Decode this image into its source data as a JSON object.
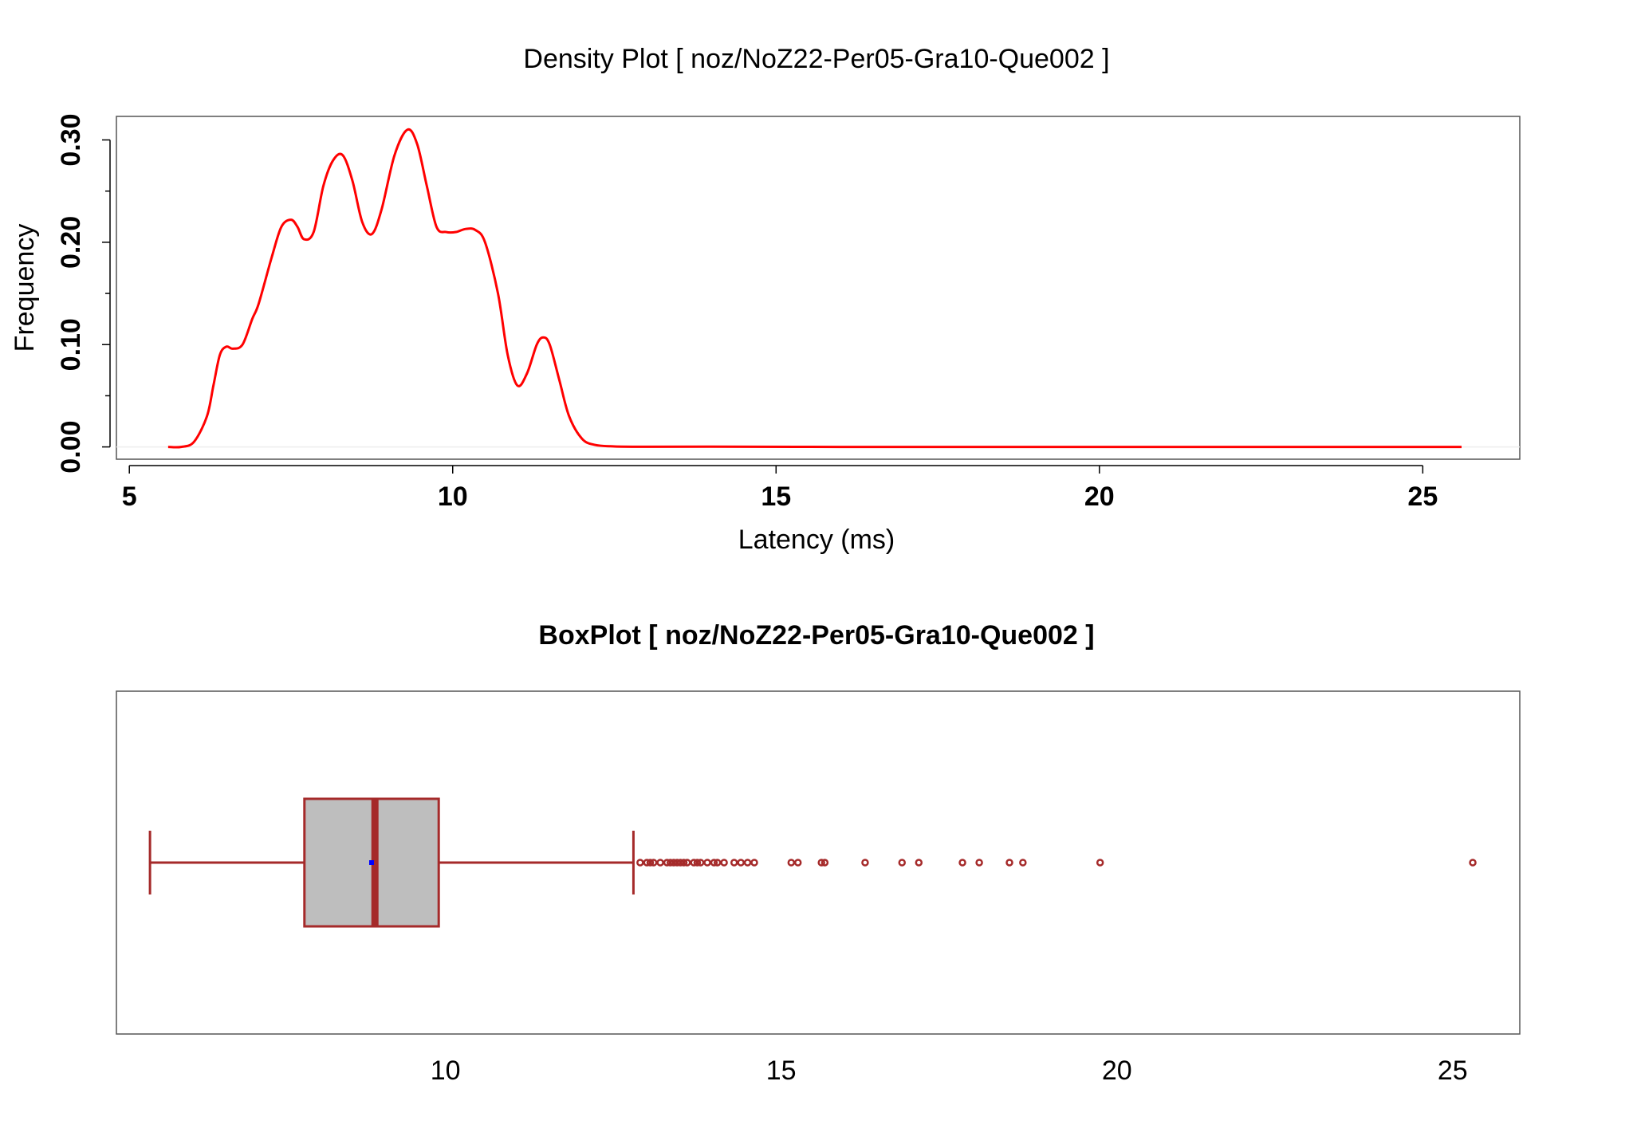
{
  "colors": {
    "density_line": "#ff0000",
    "box_stroke": "#a52a2a",
    "box_fill": "#bebebe",
    "median": "#a52a2a",
    "mean_marker": "#0000ff",
    "outlier": "#a52a2a",
    "frame": "#555555"
  },
  "chart_data": [
    {
      "type": "line",
      "title": "Density Plot [ noz/NoZ22-Per05-Gra10-Que002 ]",
      "xlabel": "Latency (ms)",
      "ylabel": "Frequency",
      "xlim": [
        4.8,
        26.5
      ],
      "ylim": [
        -0.012,
        0.323
      ],
      "xticks": [
        5,
        10,
        15,
        20,
        25
      ],
      "xtick_labels": [
        "5",
        "10",
        "15",
        "20",
        "25"
      ],
      "yticks": [
        0.0,
        0.1,
        0.2,
        0.3
      ],
      "ytick_labels": [
        "0.00",
        "0.10",
        "0.20",
        "0.30"
      ],
      "yminor_ticks": [
        0.05,
        0.15,
        0.25
      ],
      "grid": false,
      "series": [
        {
          "color": "#ff0000",
          "x": [
            5.6,
            5.8,
            6.0,
            6.2,
            6.3,
            6.4,
            6.5,
            6.6,
            6.75,
            6.9,
            7.0,
            7.2,
            7.35,
            7.5,
            7.6,
            7.7,
            7.85,
            8.0,
            8.15,
            8.3,
            8.45,
            8.6,
            8.75,
            8.9,
            9.1,
            9.3,
            9.45,
            9.6,
            9.75,
            9.9,
            10.05,
            10.2,
            10.35,
            10.5,
            10.7,
            10.85,
            11.0,
            11.15,
            11.3,
            11.4,
            11.5,
            11.65,
            11.8,
            12.0,
            12.2,
            12.5,
            13.0,
            14.0,
            16.0,
            18.0,
            20.0,
            22.0,
            24.0,
            25.6
          ],
          "y": [
            0.0,
            0.0,
            0.005,
            0.03,
            0.06,
            0.09,
            0.098,
            0.096,
            0.1,
            0.125,
            0.14,
            0.185,
            0.215,
            0.222,
            0.215,
            0.203,
            0.21,
            0.255,
            0.28,
            0.285,
            0.26,
            0.22,
            0.208,
            0.232,
            0.285,
            0.31,
            0.296,
            0.255,
            0.215,
            0.21,
            0.21,
            0.213,
            0.212,
            0.2,
            0.15,
            0.09,
            0.06,
            0.072,
            0.1,
            0.107,
            0.1,
            0.065,
            0.03,
            0.008,
            0.002,
            0.0005,
            0.0002,
            0.0003,
            0.0,
            0.0,
            0.0,
            0.0,
            0.0,
            0.0
          ]
        }
      ]
    },
    {
      "type": "box",
      "title": "BoxPlot [ noz/NoZ22-Per05-Gra10-Que002 ]",
      "xlabel": "",
      "xlim": [
        5.1,
        26.0
      ],
      "xticks": [
        10,
        15,
        20,
        25
      ],
      "xtick_labels": [
        "10",
        "15",
        "20",
        "25"
      ],
      "whisker_low": 5.6,
      "q1": 7.9,
      "median": 8.95,
      "mean": 8.9,
      "q3": 9.9,
      "whisker_high": 12.8,
      "outliers": [
        12.9,
        13.0,
        13.05,
        13.1,
        13.2,
        13.3,
        13.35,
        13.4,
        13.45,
        13.5,
        13.55,
        13.6,
        13.7,
        13.75,
        13.8,
        13.9,
        14.0,
        14.05,
        14.15,
        14.3,
        14.4,
        14.5,
        14.6,
        15.15,
        15.25,
        15.6,
        15.65,
        16.25,
        16.8,
        17.05,
        17.7,
        17.95,
        18.4,
        18.6,
        19.75,
        25.3
      ]
    }
  ]
}
